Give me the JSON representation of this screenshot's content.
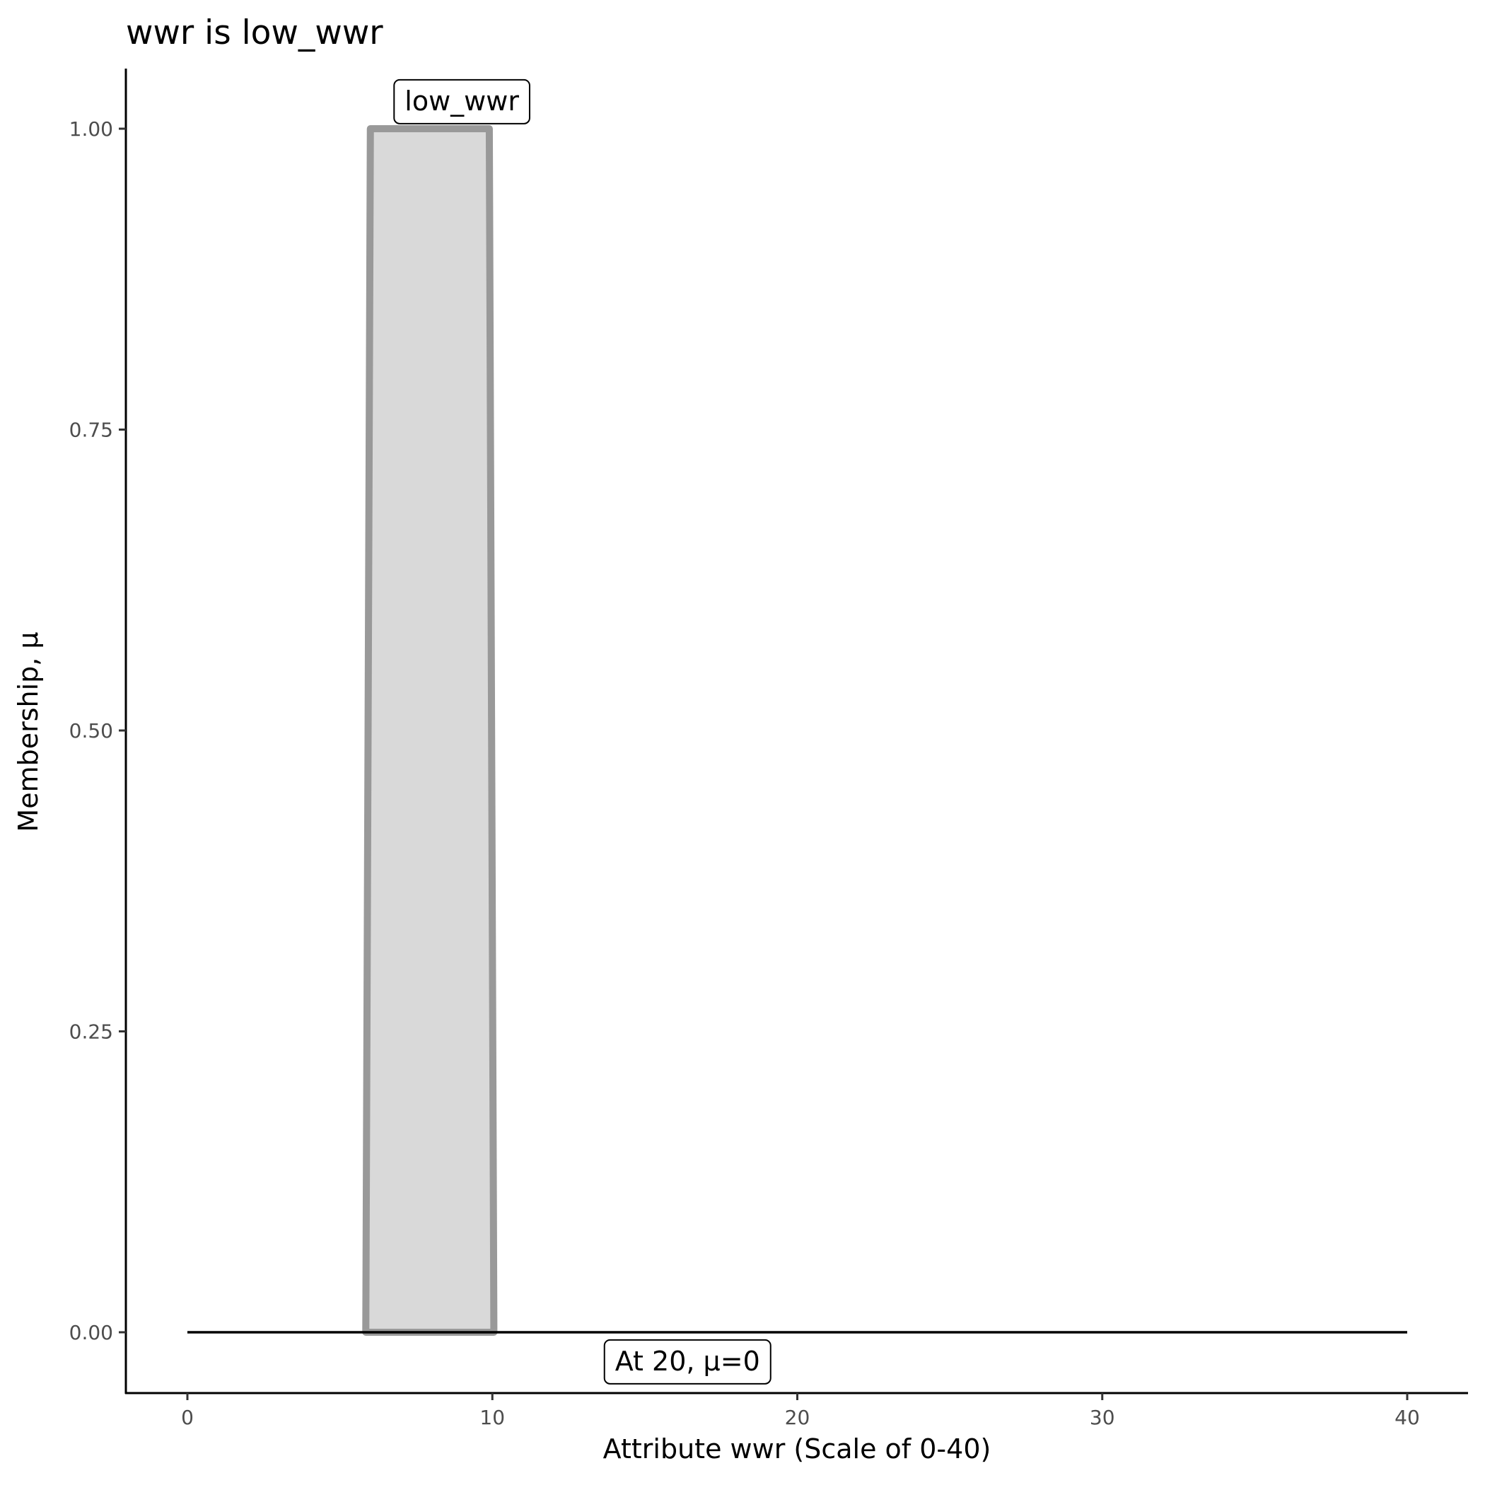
{
  "chart_data": {
    "type": "area",
    "title": "wwr is low_wwr",
    "xlabel": "Attribute wwr (Scale of 0-40)",
    "ylabel": "Membership, μ",
    "xlim": [
      -2,
      42
    ],
    "ylim": [
      -0.05,
      1.05
    ],
    "x_ticks": [
      0,
      10,
      20,
      30,
      40
    ],
    "x_tick_labels": [
      "0",
      "10",
      "20",
      "30",
      "40"
    ],
    "y_ticks": [
      0,
      0.25,
      0.5,
      0.75,
      1
    ],
    "y_tick_labels": [
      "0.00",
      "0.25",
      "0.50",
      "0.75",
      "1.00"
    ],
    "grid": false,
    "series": [
      {
        "name": "low_wwr",
        "x": [
          5.85,
          6,
          9.9,
          10.05
        ],
        "y": [
          0,
          1,
          1,
          0
        ],
        "fill": "#d9d9d9",
        "stroke": "#999999"
      },
      {
        "x": [
          0,
          40
        ],
        "y": [
          0,
          0
        ],
        "stroke": "#000000"
      }
    ],
    "annotations": [
      {
        "text": "low_wwr"
      },
      {
        "text": "At 20, μ=0"
      }
    ]
  }
}
